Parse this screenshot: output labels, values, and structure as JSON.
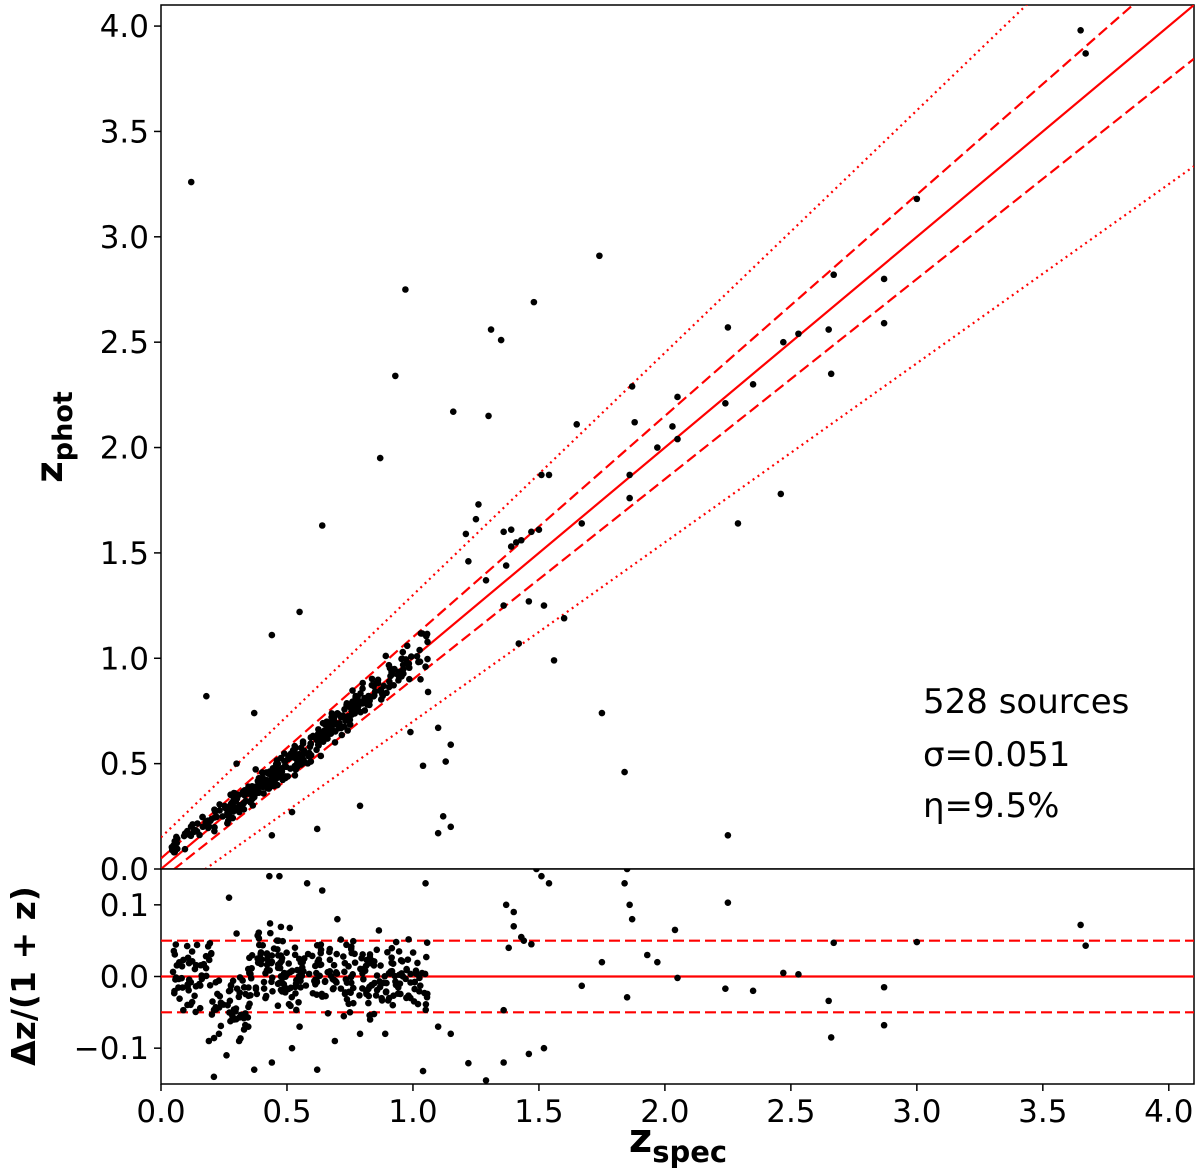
{
  "chart_data": [
    {
      "type": "scatter",
      "xlabel": "z",
      "xlabel_sub": "spec",
      "ylabel": "z",
      "ylabel_sub": "phot",
      "xlim": [
        0.0,
        4.1
      ],
      "ylim": [
        0.0,
        4.1
      ],
      "xticks": [
        "0.0",
        "0.5",
        "1.0",
        "1.5",
        "2.0",
        "2.5",
        "3.0",
        "3.5",
        "4.0"
      ],
      "xtick_values": [
        0,
        0.5,
        1,
        1.5,
        2,
        2.5,
        3,
        3.5,
        4
      ],
      "yticks": [
        "0.0",
        "0.5",
        "1.0",
        "1.5",
        "2.0",
        "2.5",
        "3.0",
        "3.5",
        "4.0"
      ],
      "ytick_values": [
        0,
        0.5,
        1,
        1.5,
        2,
        2.5,
        3,
        3.5,
        4
      ],
      "annotations": [
        "528 sources",
        "σ=0.051",
        "η=9.5%"
      ],
      "reference_lines": {
        "color": "#ff0000",
        "solid": "z_phot = z_spec",
        "dashed": "z_phot = z_spec ± 0.05(1 + z_spec)",
        "dotted": "z_phot = z_spec ± 0.15(1 + z_spec)"
      },
      "marker_color": "#000000",
      "points": [
        [
          0.12,
          3.26
        ],
        [
          0.97,
          2.75
        ],
        [
          0.93,
          2.34
        ],
        [
          0.87,
          1.95
        ],
        [
          0.64,
          1.63
        ],
        [
          0.55,
          1.22
        ],
        [
          0.44,
          1.11
        ],
        [
          0.18,
          0.82
        ],
        [
          0.37,
          0.74
        ],
        [
          0.3,
          0.5
        ],
        [
          1.74,
          2.91
        ],
        [
          1.48,
          2.69
        ],
        [
          1.31,
          2.56
        ],
        [
          1.35,
          2.51
        ],
        [
          1.16,
          2.17
        ],
        [
          1.3,
          2.15
        ],
        [
          1.65,
          2.11
        ],
        [
          1.87,
          2.29
        ],
        [
          1.88,
          2.12
        ],
        [
          1.97,
          2.0
        ],
        [
          2.03,
          2.1
        ],
        [
          2.05,
          2.24
        ],
        [
          2.05,
          2.04
        ],
        [
          2.25,
          2.57
        ],
        [
          2.24,
          2.21
        ],
        [
          2.35,
          2.3
        ],
        [
          2.47,
          2.5
        ],
        [
          2.53,
          2.54
        ],
        [
          2.65,
          2.56
        ],
        [
          2.67,
          2.82
        ],
        [
          2.66,
          2.35
        ],
        [
          2.87,
          2.8
        ],
        [
          2.87,
          2.59
        ],
        [
          3.0,
          3.18
        ],
        [
          3.65,
          3.98
        ],
        [
          3.67,
          3.87
        ],
        [
          1.25,
          1.66
        ],
        [
          1.26,
          1.73
        ],
        [
          1.51,
          1.87
        ],
        [
          1.54,
          1.87
        ],
        [
          1.36,
          1.6
        ],
        [
          1.39,
          1.61
        ],
        [
          1.41,
          1.55
        ],
        [
          1.39,
          1.53
        ],
        [
          1.37,
          1.44
        ],
        [
          1.43,
          1.56
        ],
        [
          1.47,
          1.6
        ],
        [
          1.5,
          1.61
        ],
        [
          1.67,
          1.64
        ],
        [
          1.86,
          1.87
        ],
        [
          1.86,
          1.76
        ],
        [
          2.46,
          1.78
        ],
        [
          2.29,
          1.64
        ],
        [
          1.21,
          1.59
        ],
        [
          1.29,
          1.37
        ],
        [
          1.22,
          1.46
        ],
        [
          1.36,
          1.25
        ],
        [
          1.46,
          1.27
        ],
        [
          1.52,
          1.25
        ],
        [
          1.6,
          1.19
        ],
        [
          1.42,
          1.07
        ],
        [
          1.56,
          0.99
        ],
        [
          1.75,
          0.74
        ],
        [
          1.84,
          0.46
        ],
        [
          2.25,
          0.16
        ],
        [
          1.1,
          0.67
        ],
        [
          1.15,
          0.59
        ],
        [
          1.13,
          0.51
        ],
        [
          1.12,
          0.25
        ],
        [
          1.15,
          0.2
        ],
        [
          1.1,
          0.17
        ],
        [
          1.04,
          0.49
        ],
        [
          0.99,
          0.65
        ],
        [
          0.79,
          0.3
        ],
        [
          0.62,
          0.19
        ],
        [
          0.52,
          0.27
        ],
        [
          0.44,
          0.16
        ],
        [
          1.06,
          0.84
        ],
        [
          1.03,
          0.9
        ],
        [
          1.05,
          0.96
        ]
      ]
    },
    {
      "type": "scatter",
      "xlabel": "",
      "ylabel": "Δz/(1 + z)",
      "xlim": [
        0.0,
        4.1
      ],
      "ylim": [
        -0.15,
        0.15
      ],
      "yticks": [
        "−0.1",
        "0.0",
        "0.1"
      ],
      "ytick_values": [
        -0.1,
        0,
        0.1
      ],
      "reference_lines": {
        "color": "#ff0000",
        "solid": 0.0,
        "dashed": [
          -0.05,
          0.05
        ]
      },
      "marker_color": "#000000",
      "points": [
        [
          1.05,
          0.13
        ],
        [
          1.37,
          0.1
        ],
        [
          1.4,
          0.09
        ],
        [
          1.4,
          0.07
        ],
        [
          1.43,
          0.055
        ],
        [
          1.44,
          0.05
        ],
        [
          1.38,
          0.04
        ],
        [
          1.47,
          0.045
        ],
        [
          1.51,
          0.14
        ],
        [
          1.54,
          0.13
        ],
        [
          1.49,
          0.15
        ],
        [
          1.84,
          0.13
        ],
        [
          1.85,
          0.15
        ],
        [
          1.86,
          0.1
        ],
        [
          1.87,
          0.08
        ],
        [
          1.93,
          0.03
        ],
        [
          1.97,
          0.02
        ],
        [
          2.04,
          0.065
        ],
        [
          2.05,
          -0.002
        ],
        [
          2.25,
          0.103
        ],
        [
          2.24,
          -0.017
        ],
        [
          2.35,
          -0.02
        ],
        [
          2.47,
          0.005
        ],
        [
          2.53,
          0.003
        ],
        [
          2.65,
          -0.034
        ],
        [
          2.66,
          -0.085
        ],
        [
          2.67,
          0.047
        ],
        [
          2.87,
          -0.015
        ],
        [
          2.87,
          -0.068
        ],
        [
          3.0,
          0.048
        ],
        [
          3.65,
          0.072
        ],
        [
          3.67,
          0.043
        ],
        [
          1.67,
          -0.013
        ],
        [
          1.85,
          -0.029
        ],
        [
          1.75,
          0.02
        ],
        [
          1.36,
          -0.047
        ],
        [
          1.29,
          -0.145
        ],
        [
          1.22,
          -0.121
        ],
        [
          1.36,
          -0.12
        ],
        [
          1.46,
          -0.108
        ],
        [
          1.52,
          -0.1
        ],
        [
          1.6,
          -0.155
        ],
        [
          1.04,
          -0.132
        ],
        [
          1.1,
          -0.07
        ],
        [
          1.15,
          -0.08
        ],
        [
          0.92,
          -0.04
        ],
        [
          0.99,
          -0.03
        ],
        [
          0.79,
          -0.08
        ],
        [
          0.62,
          -0.13
        ],
        [
          0.52,
          -0.1
        ],
        [
          0.44,
          -0.12
        ],
        [
          0.27,
          0.11
        ],
        [
          0.3,
          0.06
        ],
        [
          0.43,
          0.14
        ],
        [
          0.47,
          0.14
        ],
        [
          0.58,
          0.13
        ],
        [
          0.64,
          0.12
        ],
        [
          0.7,
          0.08
        ],
        [
          0.37,
          -0.13
        ],
        [
          0.19,
          -0.09
        ],
        [
          0.21,
          -0.14
        ],
        [
          0.23,
          -0.08
        ],
        [
          0.26,
          -0.11
        ],
        [
          0.29,
          -0.06
        ],
        [
          0.31,
          -0.09
        ],
        [
          0.55,
          -0.07
        ],
        [
          0.69,
          -0.09
        ],
        [
          0.75,
          -0.05
        ],
        [
          0.83,
          -0.06
        ],
        [
          0.89,
          -0.08
        ]
      ]
    }
  ]
}
